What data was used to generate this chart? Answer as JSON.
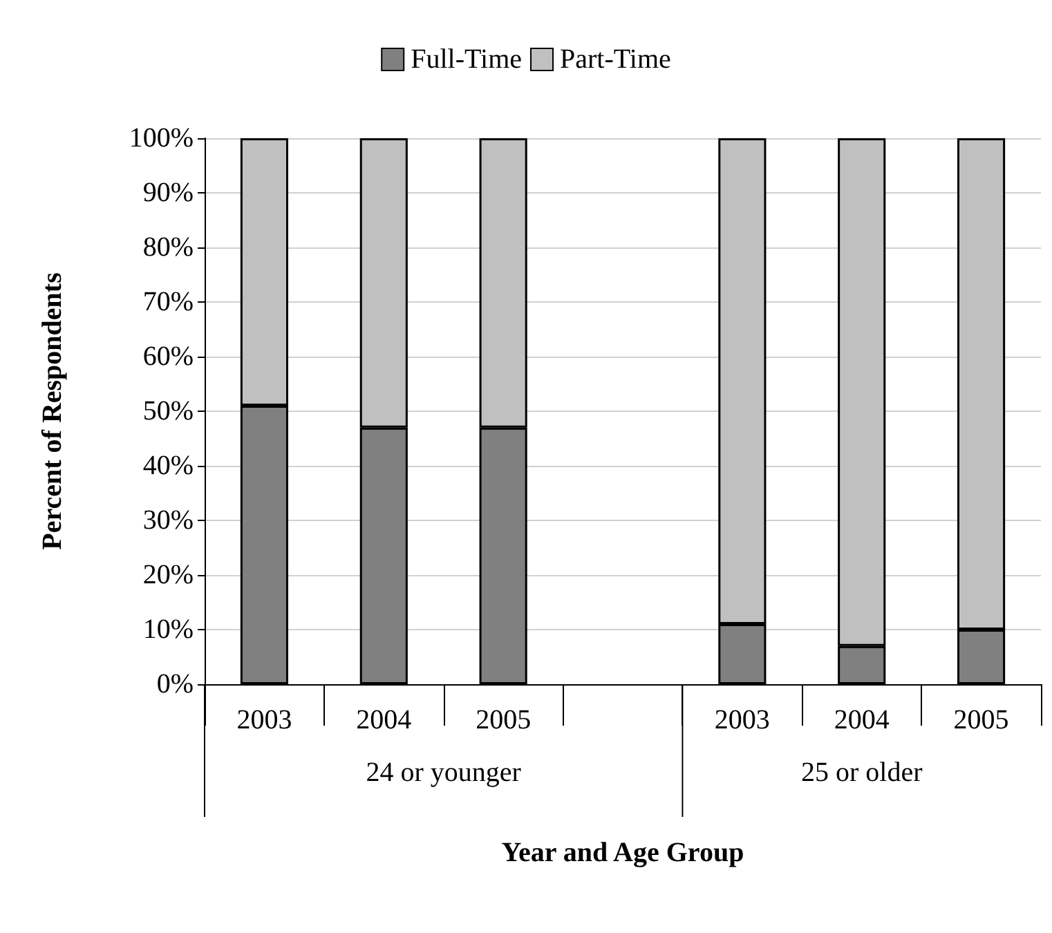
{
  "chart_data": {
    "type": "bar",
    "stacked": true,
    "xlabel": "Year and Age Group",
    "ylabel": "Percent of Respondents",
    "categories": [
      "2003",
      "2004",
      "2005",
      null,
      "2003",
      "2004",
      "2005"
    ],
    "series": [
      {
        "name": "Full-Time",
        "color": "#808080",
        "values": [
          51,
          47,
          47,
          null,
          11,
          7,
          10
        ]
      },
      {
        "name": "Part-Time",
        "color": "#c0c0c0",
        "values": [
          49,
          53,
          53,
          null,
          89,
          93,
          90
        ]
      }
    ],
    "ylim": [
      0,
      100
    ],
    "yticks": [
      {
        "value": 0,
        "label": "0%"
      },
      {
        "value": 10,
        "label": "10%"
      },
      {
        "value": 20,
        "label": "20%"
      },
      {
        "value": 30,
        "label": "30%"
      },
      {
        "value": 40,
        "label": "40%"
      },
      {
        "value": 50,
        "label": "50%"
      },
      {
        "value": 60,
        "label": "60%"
      },
      {
        "value": 70,
        "label": "70%"
      },
      {
        "value": 80,
        "label": "80%"
      },
      {
        "value": 90,
        "label": "90%"
      },
      {
        "value": 100,
        "label": "100%"
      }
    ],
    "annotations": [
      "24 or younger",
      "25 or older"
    ],
    "grid": "y",
    "legend": "top"
  }
}
